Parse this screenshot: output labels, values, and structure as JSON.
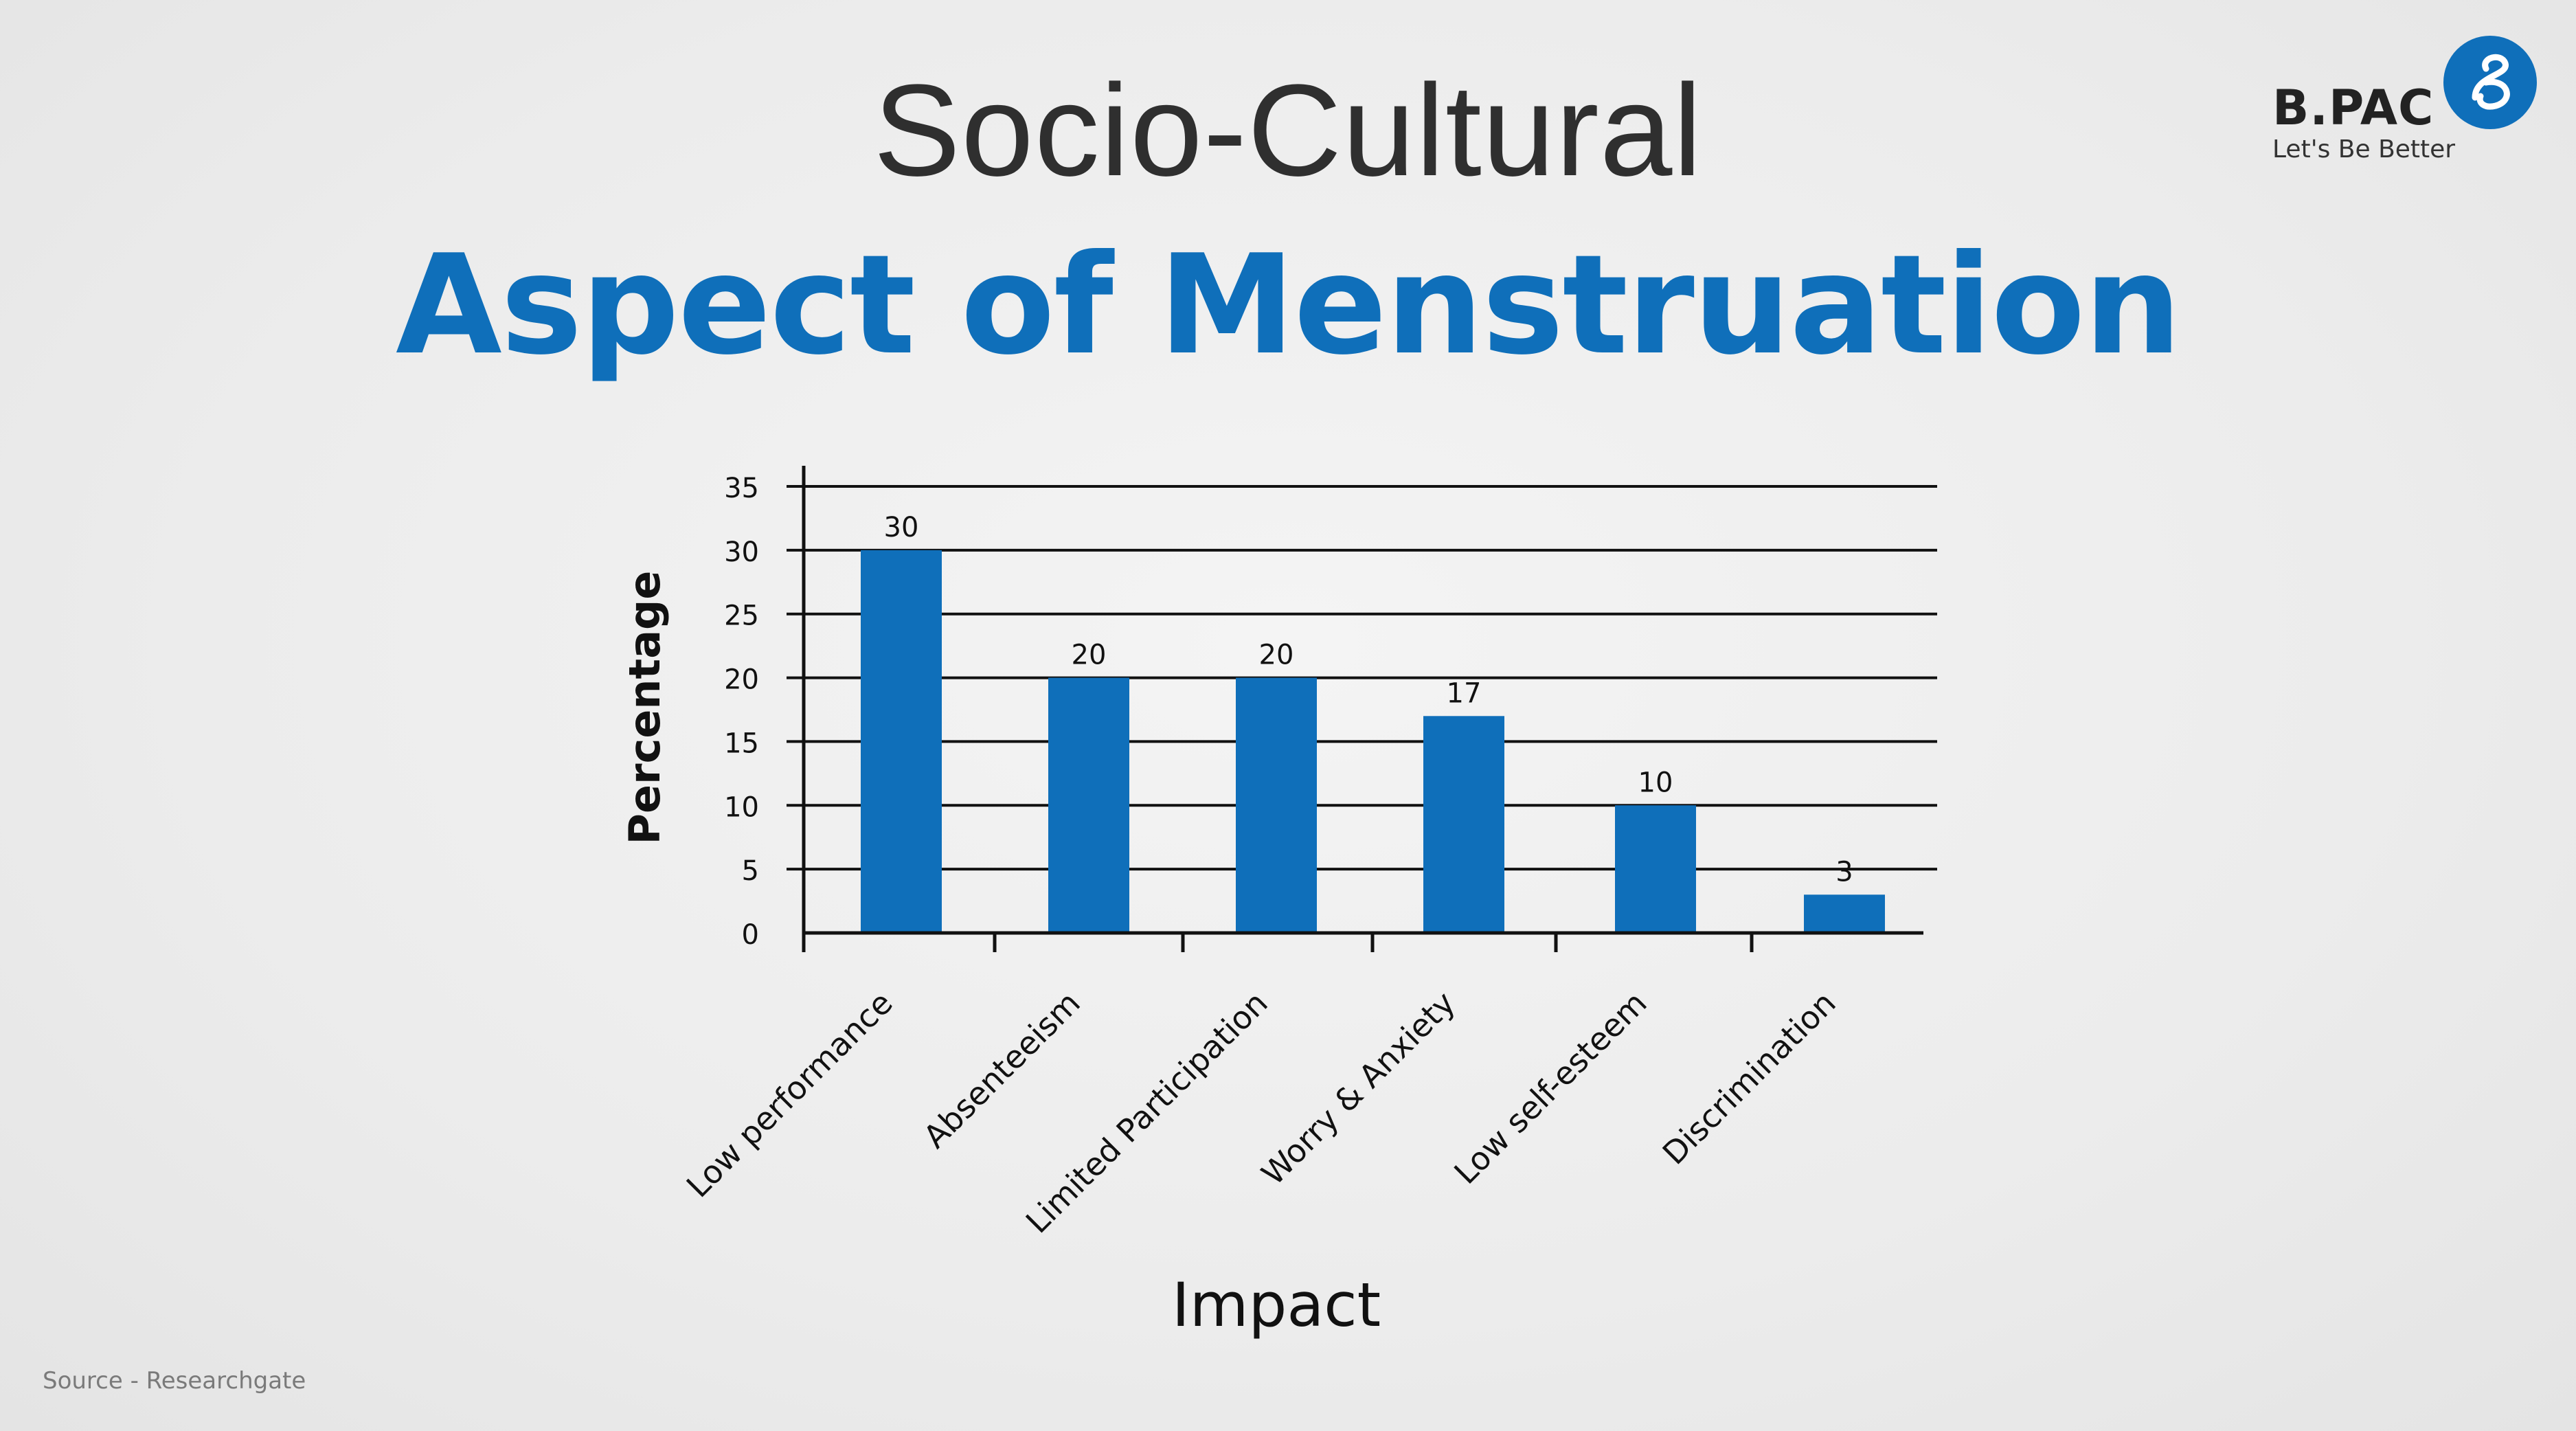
{
  "header": {
    "title_line1": "Socio-Cultural",
    "title_line2": "Aspect of Menstruation"
  },
  "logo": {
    "name": "B.PAC",
    "tagline": "Let's Be Better",
    "mark_icon": "bpac-logo-icon",
    "accent": "#0f6fba"
  },
  "footer": {
    "source": "Source - Researchgate"
  },
  "chart_data": {
    "type": "bar",
    "categories": [
      "Low performance",
      "Absenteeism",
      "Limited Participation",
      "Worry & Anxiety",
      "Low self-esteem",
      "Discrimination"
    ],
    "values": [
      30,
      20,
      20,
      17,
      10,
      3
    ],
    "data_labels": [
      "30",
      "20",
      "20",
      "17",
      "10",
      "3"
    ],
    "xlabel": "Impact",
    "ylabel": "Percentage",
    "ylim": [
      0,
      35
    ],
    "yticks": [
      0,
      5,
      10,
      15,
      20,
      25,
      30,
      35
    ],
    "grid": true,
    "legend": "none",
    "bar_color": "#0f6fba"
  }
}
